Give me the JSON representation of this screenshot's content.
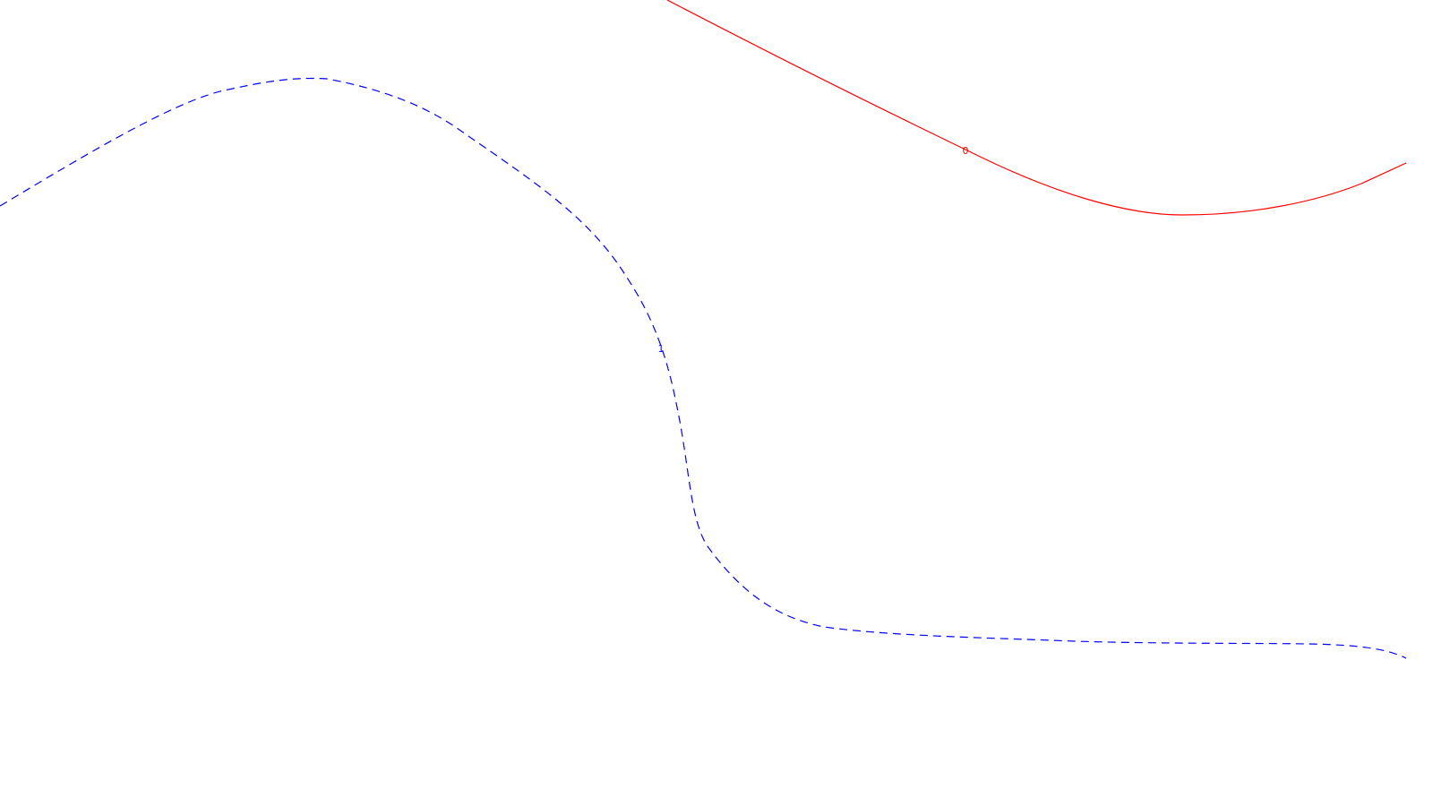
{
  "colors": {
    "background": "#ffffff"
  },
  "contours": [
    {
      "id": "contour-0",
      "label": "0",
      "color": "#ff0000",
      "style": "solid"
    },
    {
      "id": "contour-1",
      "label": "1",
      "color": "#0000ff",
      "style": "dashed"
    }
  ]
}
